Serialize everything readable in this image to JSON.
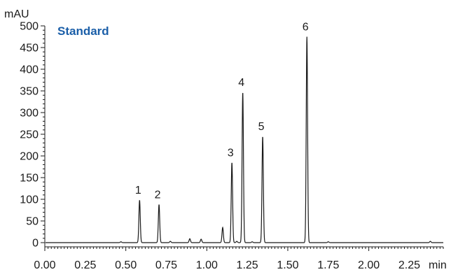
{
  "chart_data": {
    "type": "line",
    "title": "Standard",
    "title_color": "#1a5ea8",
    "ylabel": "mAU",
    "xlabel": "min",
    "xlim": [
      0.0,
      2.46
    ],
    "ylim": [
      -5,
      500
    ],
    "x_ticks": [
      "0.00",
      "0.25",
      "0.50",
      "0.75",
      "1.00",
      "1.25",
      "1.50",
      "1.75",
      "2.00",
      "2.25"
    ],
    "y_ticks": [
      "0",
      "50",
      "100",
      "150",
      "200",
      "250",
      "300",
      "350",
      "400",
      "450",
      "500"
    ],
    "grid": false,
    "line_color": "#1a1a1a",
    "baseline": 0,
    "peaks": [
      {
        "label": "1",
        "x": 0.585,
        "y": 98
      },
      {
        "label": "2",
        "x": 0.705,
        "y": 88
      },
      {
        "label": "3",
        "x": 1.155,
        "y": 185
      },
      {
        "label": "4",
        "x": 1.222,
        "y": 347
      },
      {
        "label": "5",
        "x": 1.345,
        "y": 245
      },
      {
        "label": "6",
        "x": 1.618,
        "y": 475
      }
    ],
    "minor_peaks": [
      {
        "x": 0.47,
        "y": 2
      },
      {
        "x": 0.775,
        "y": 3
      },
      {
        "x": 0.895,
        "y": 9
      },
      {
        "x": 0.965,
        "y": 8
      },
      {
        "x": 1.098,
        "y": 35
      },
      {
        "x": 1.185,
        "y": 3
      },
      {
        "x": 1.28,
        "y": 2
      },
      {
        "x": 1.75,
        "y": 2
      },
      {
        "x": 2.38,
        "y": 3
      }
    ]
  }
}
